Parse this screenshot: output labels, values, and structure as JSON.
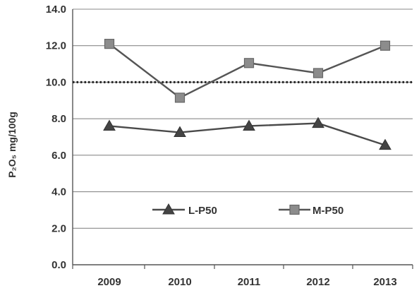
{
  "chart_data": {
    "type": "line",
    "title": "",
    "xlabel": "",
    "ylabel": "P₂O₅ mg/100g",
    "categories": [
      "2009",
      "2010",
      "2011",
      "2012",
      "2013"
    ],
    "ylim": [
      0,
      14
    ],
    "yticks": [
      "0.0",
      "2.0",
      "4.0",
      "6.0",
      "8.0",
      "10.0",
      "12.0",
      "14.0"
    ],
    "grid": true,
    "legend_position": "bottom-center",
    "reference_line": {
      "value": 10.0,
      "style": "dotted",
      "color": "#222222"
    },
    "series": [
      {
        "name": "L-P50",
        "marker": "triangle",
        "color": "#4a4a4a",
        "values": [
          7.6,
          7.25,
          7.6,
          7.75,
          6.55
        ]
      },
      {
        "name": "M-P50",
        "marker": "square",
        "color": "#555555",
        "values": [
          12.1,
          9.15,
          11.05,
          10.5,
          12.0
        ]
      }
    ]
  }
}
